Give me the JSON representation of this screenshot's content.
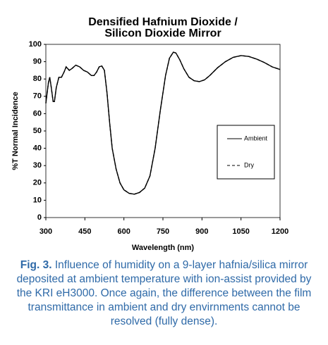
{
  "chart_data": {
    "type": "line",
    "title": [
      "Densified Hafnium Dioxide /",
      "Silicon Dioxide Mirror"
    ],
    "xlabel": "Wavelength (nm)",
    "ylabel": "%T Normal Incidence",
    "x": [
      300,
      310,
      315,
      320,
      328,
      333,
      340,
      350,
      360,
      370,
      378,
      390,
      400,
      415,
      430,
      445,
      460,
      475,
      485,
      495,
      505,
      515,
      525,
      535,
      545,
      555,
      570,
      585,
      600,
      620,
      640,
      660,
      680,
      700,
      720,
      740,
      760,
      775,
      790,
      800,
      815,
      830,
      850,
      870,
      890,
      910,
      930,
      960,
      990,
      1020,
      1050,
      1080,
      1110,
      1140,
      1170,
      1200
    ],
    "series": [
      {
        "name": "Ambient",
        "color": "#000000",
        "linestyle": "solid",
        "values": [
          66,
          78,
          81,
          76,
          67,
          67,
          75,
          81,
          81,
          84,
          87,
          85,
          86,
          88,
          87,
          85,
          84,
          82,
          82,
          84,
          87,
          87.5,
          85,
          72,
          55,
          40,
          28,
          20,
          16,
          14,
          13.5,
          14.5,
          17,
          24,
          40,
          62,
          82,
          92,
          95.5,
          95,
          91,
          86,
          81,
          79,
          78.5,
          79.5,
          82,
          86.5,
          90,
          92.5,
          93.5,
          93,
          91.5,
          89.5,
          87,
          85.5
        ]
      },
      {
        "name": "Dry",
        "color": "#000000",
        "linestyle": "dashed",
        "values": [
          66,
          78,
          81,
          76,
          67,
          67,
          75,
          81,
          81,
          84,
          87,
          85,
          86,
          88,
          87,
          85,
          84,
          82,
          82,
          84,
          87,
          87.5,
          85,
          72,
          55,
          40,
          28,
          20,
          16,
          14,
          13.5,
          14.5,
          17,
          24,
          40,
          62,
          82,
          92,
          95.5,
          95,
          91,
          86,
          81,
          79,
          78.5,
          79.5,
          82,
          86.5,
          90,
          92.5,
          93.5,
          93,
          91.5,
          89.5,
          87,
          85.5
        ]
      }
    ],
    "xlim": [
      300,
      1200
    ],
    "xticks": [
      300,
      450,
      600,
      750,
      900,
      1050,
      1200
    ],
    "ylim": [
      0,
      100
    ],
    "yticks": [
      0,
      10,
      20,
      30,
      40,
      50,
      60,
      70,
      80,
      90,
      100
    ],
    "grid": false,
    "legend": "right"
  },
  "caption": {
    "label": "Fig. 3.",
    "text": "Influence of humidity on a 9-layer hafnia/silica mirror deposited at ambient temperature with ion-assist provided by the KRI eH3000. Once again, the difference between the film transmittance in ambient and dry envirnments cannot be resolved (fully dense)."
  }
}
